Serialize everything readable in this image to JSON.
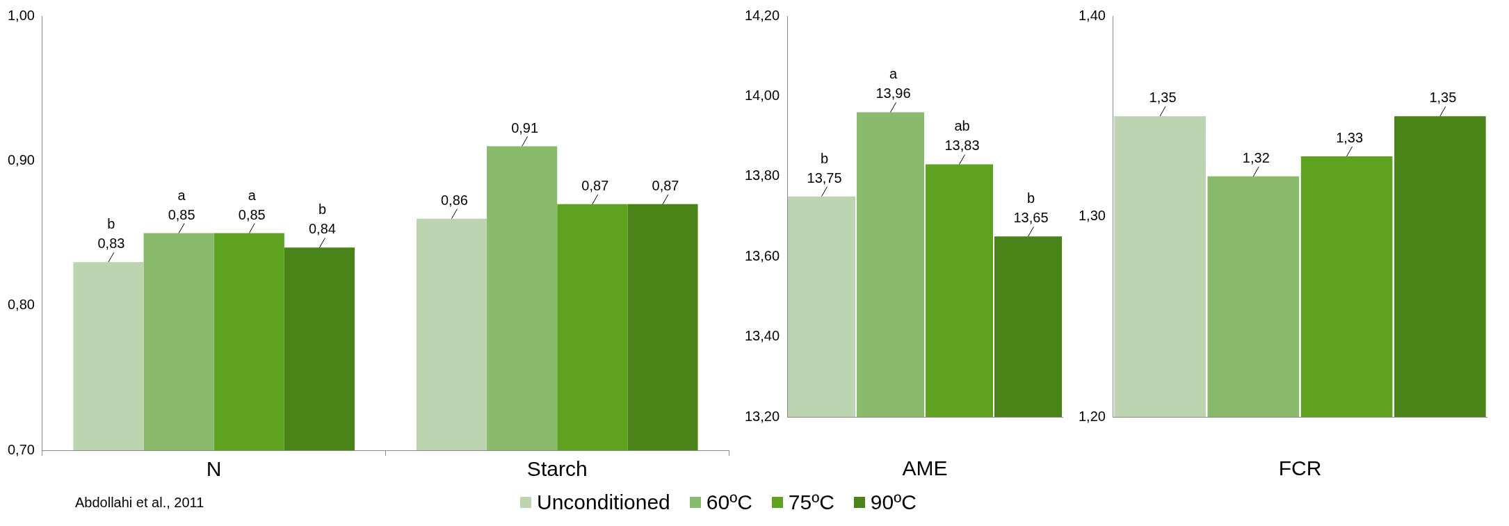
{
  "chart_data": [
    {
      "type": "bar",
      "categories": [
        "N",
        "Starch"
      ],
      "legend": "bottom",
      "series": [
        {
          "name": "Unconditioned",
          "color": "#bcd5b0",
          "values": [
            0.83,
            0.86
          ],
          "value_labels": [
            "0,83",
            "0,86"
          ]
        },
        {
          "name": "60ºC",
          "color": "#8aba6c",
          "values": [
            0.85,
            0.91
          ],
          "value_labels": [
            "0,85",
            "0,91"
          ]
        },
        {
          "name": "75ºC",
          "color": "#5fa21f",
          "values": [
            0.85,
            0.87
          ],
          "value_labels": [
            "0,85",
            "0,87"
          ]
        },
        {
          "name": "90ºC",
          "color": "#4a8419",
          "values": [
            0.84,
            0.87
          ],
          "value_labels": [
            "0,84",
            "0,87"
          ]
        }
      ],
      "ylim": [
        0.7,
        1.0
      ],
      "yticks": [
        {
          "value": 0.7,
          "label": "0,70"
        },
        {
          "value": 0.8,
          "label": "0,80"
        },
        {
          "value": 0.9,
          "label": "0,90"
        },
        {
          "value": 1.0,
          "label": "1,00"
        }
      ],
      "annotations": [
        "b",
        "a",
        "a",
        "b",
        "Abdollahi et al., 2011"
      ]
    },
    {
      "type": "bar",
      "categories": [
        null,
        null,
        null,
        null
      ],
      "xlabel": "AME",
      "series": [
        {
          "colors": [
            "#bcd5b0",
            "#8aba6c",
            "#5fa21f",
            "#4a8419"
          ],
          "values": [
            13.75,
            13.96,
            13.83,
            13.65
          ],
          "value_labels": [
            "13,75",
            "13,96",
            "13,83",
            "13,65"
          ]
        }
      ],
      "ylim": [
        13.2,
        14.2
      ],
      "yticks": [
        {
          "value": 13.2,
          "label": "13,20"
        },
        {
          "value": 13.4,
          "label": "13,40"
        },
        {
          "value": 13.6,
          "label": "13,60"
        },
        {
          "value": 13.8,
          "label": "13,80"
        },
        {
          "value": 14.0,
          "label": "14,00"
        },
        {
          "value": 14.2,
          "label": "14,20"
        }
      ],
      "annotations": [
        "b",
        "a",
        "ab",
        "b"
      ]
    },
    {
      "type": "bar",
      "categories": [
        null,
        null,
        null,
        null
      ],
      "xlabel": "FCR",
      "series": [
        {
          "colors": [
            "#bcd5b0",
            "#8aba6c",
            "#5fa21f",
            "#4a8419"
          ],
          "values": [
            1.35,
            1.32,
            1.33,
            1.35
          ],
          "value_labels": [
            "1,35",
            "1,32",
            "1,33",
            "1,35"
          ]
        }
      ],
      "ylim": [
        1.2,
        1.4
      ],
      "yticks": [
        {
          "value": 1.2,
          "label": "1,20"
        },
        {
          "value": 1.3,
          "label": "1,30"
        },
        {
          "value": 1.4,
          "label": "1,40"
        }
      ]
    }
  ]
}
